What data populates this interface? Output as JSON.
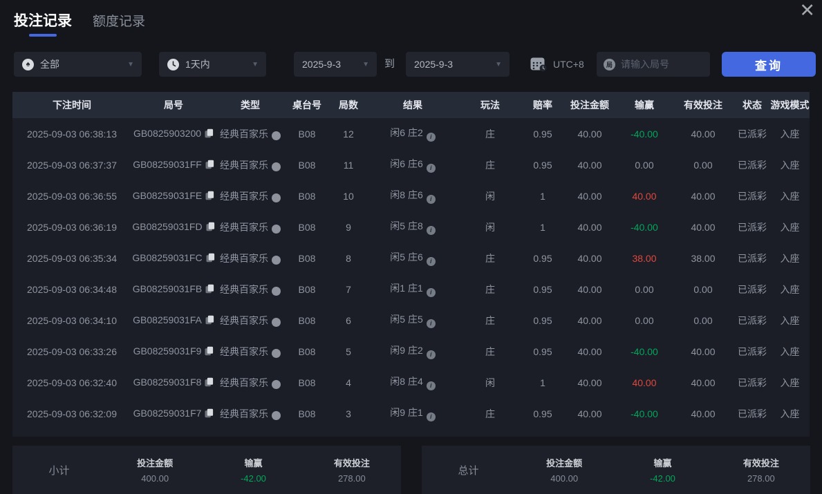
{
  "icons": {
    "close": "✕",
    "spade": "♠",
    "round_badge": "局"
  },
  "tabs": {
    "active": "投注记录",
    "inactive": "额度记录"
  },
  "filters": {
    "game_type": "全部",
    "time_range": "1天内",
    "date_from": "2025-9-3",
    "to_label": "到",
    "date_to": "2025-9-3",
    "timezone": "UTC+8",
    "round_placeholder": "请输入局号",
    "query_button": "查询"
  },
  "table": {
    "headers": [
      "下注时间",
      "局号",
      "类型",
      "桌台号",
      "局数",
      "结果",
      "玩法",
      "赔率",
      "投注金额",
      "输赢",
      "有效投注",
      "状态",
      "游戏模式"
    ],
    "rows": [
      {
        "time": "2025-09-03 06:38:13",
        "id": "GB0825903200",
        "type": "经典百家乐",
        "table": "B08",
        "round": "12",
        "result": "闲6 庄2",
        "play": "庄",
        "odds": "0.95",
        "amount": "40.00",
        "winloss": "-40.00",
        "winloss_color": "green",
        "valid": "40.00",
        "status": "已派彩",
        "mode": "入座"
      },
      {
        "time": "2025-09-03 06:37:37",
        "id": "GB08259031FF",
        "type": "经典百家乐",
        "table": "B08",
        "round": "11",
        "result": "闲6 庄6",
        "play": "庄",
        "odds": "0.95",
        "amount": "40.00",
        "winloss": "0.00",
        "winloss_color": "plain",
        "valid": "0.00",
        "status": "已派彩",
        "mode": "入座"
      },
      {
        "time": "2025-09-03 06:36:55",
        "id": "GB08259031FE",
        "type": "经典百家乐",
        "table": "B08",
        "round": "10",
        "result": "闲8 庄6",
        "play": "闲",
        "odds": "1",
        "amount": "40.00",
        "winloss": "40.00",
        "winloss_color": "red",
        "valid": "40.00",
        "status": "已派彩",
        "mode": "入座"
      },
      {
        "time": "2025-09-03 06:36:19",
        "id": "GB08259031FD",
        "type": "经典百家乐",
        "table": "B08",
        "round": "9",
        "result": "闲5 庄8",
        "play": "闲",
        "odds": "1",
        "amount": "40.00",
        "winloss": "-40.00",
        "winloss_color": "green",
        "valid": "40.00",
        "status": "已派彩",
        "mode": "入座"
      },
      {
        "time": "2025-09-03 06:35:34",
        "id": "GB08259031FC",
        "type": "经典百家乐",
        "table": "B08",
        "round": "8",
        "result": "闲5 庄6",
        "play": "庄",
        "odds": "0.95",
        "amount": "40.00",
        "winloss": "38.00",
        "winloss_color": "red",
        "valid": "38.00",
        "status": "已派彩",
        "mode": "入座"
      },
      {
        "time": "2025-09-03 06:34:48",
        "id": "GB08259031FB",
        "type": "经典百家乐",
        "table": "B08",
        "round": "7",
        "result": "闲1 庄1",
        "play": "庄",
        "odds": "0.95",
        "amount": "40.00",
        "winloss": "0.00",
        "winloss_color": "plain",
        "valid": "0.00",
        "status": "已派彩",
        "mode": "入座"
      },
      {
        "time": "2025-09-03 06:34:10",
        "id": "GB08259031FA",
        "type": "经典百家乐",
        "table": "B08",
        "round": "6",
        "result": "闲5 庄5",
        "play": "庄",
        "odds": "0.95",
        "amount": "40.00",
        "winloss": "0.00",
        "winloss_color": "plain",
        "valid": "0.00",
        "status": "已派彩",
        "mode": "入座"
      },
      {
        "time": "2025-09-03 06:33:26",
        "id": "GB08259031F9",
        "type": "经典百家乐",
        "table": "B08",
        "round": "5",
        "result": "闲9 庄2",
        "play": "庄",
        "odds": "0.95",
        "amount": "40.00",
        "winloss": "-40.00",
        "winloss_color": "green",
        "valid": "40.00",
        "status": "已派彩",
        "mode": "入座"
      },
      {
        "time": "2025-09-03 06:32:40",
        "id": "GB08259031F8",
        "type": "经典百家乐",
        "table": "B08",
        "round": "4",
        "result": "闲8 庄4",
        "play": "闲",
        "odds": "1",
        "amount": "40.00",
        "winloss": "40.00",
        "winloss_color": "red",
        "valid": "40.00",
        "status": "已派彩",
        "mode": "入座"
      },
      {
        "time": "2025-09-03 06:32:09",
        "id": "GB08259031F7",
        "type": "经典百家乐",
        "table": "B08",
        "round": "3",
        "result": "闲9 庄1",
        "play": "庄",
        "odds": "0.95",
        "amount": "40.00",
        "winloss": "-40.00",
        "winloss_color": "green",
        "valid": "40.00",
        "status": "已派彩",
        "mode": "入座"
      }
    ]
  },
  "summary": {
    "columns": [
      "投注金额",
      "输赢",
      "有效投注"
    ],
    "subtotal": {
      "label": "小计",
      "bet_amount": "400.00",
      "winloss": "-42.00",
      "valid_bet": "278.00"
    },
    "total": {
      "label": "总计",
      "bet_amount": "400.00",
      "winloss": "-42.00",
      "valid_bet": "278.00"
    }
  },
  "colors": {
    "accent": "#4468e0",
    "win_red": "#e0483f",
    "loss_green": "#00a65c"
  }
}
